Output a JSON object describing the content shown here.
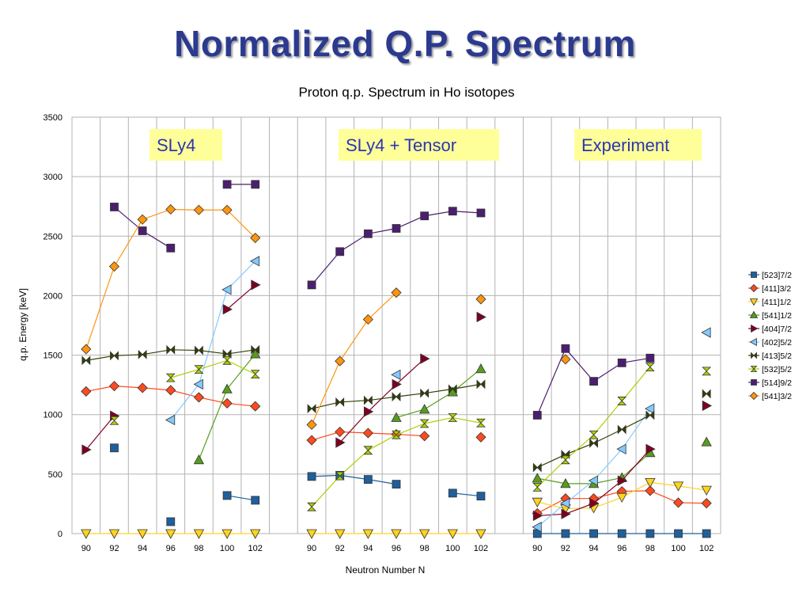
{
  "slide": {
    "title": "Normalized Q.P. Spectrum"
  },
  "chart_data": {
    "type": "line",
    "title": "Proton q.p. Spectrum in Ho isotopes",
    "xlabel": "Neutron Number N",
    "ylabel": "q.p. Energy [keV]",
    "ylim": [
      0,
      3500
    ],
    "yticks": [
      0,
      500,
      1000,
      1500,
      2000,
      2500,
      3000,
      3500
    ],
    "grid": true,
    "legend_position": "right",
    "panels": [
      {
        "label": "SLy4",
        "categories": [
          "90",
          "92",
          "94",
          "96",
          "98",
          "100",
          "102"
        ]
      },
      {
        "label": "SLy4 + Tensor",
        "categories": [
          "90",
          "92",
          "94",
          "96",
          "98",
          "100",
          "102"
        ]
      },
      {
        "label": "Experiment",
        "categories": [
          "90",
          "92",
          "94",
          "96",
          "98",
          "100",
          "102"
        ]
      }
    ],
    "series": [
      {
        "name": "[523]7/2",
        "color": "#1f5f9c",
        "marker": "square",
        "values": [
          [
            null,
            720,
            null,
            100,
            null,
            320,
            280
          ],
          [
            480,
            490,
            455,
            415,
            null,
            340,
            315
          ],
          [
            0,
            0,
            0,
            0,
            0,
            0,
            0
          ]
        ]
      },
      {
        "name": "[411]3/2",
        "color": "#ff4a1f",
        "marker": "diamond",
        "values": [
          [
            1195,
            1240,
            1225,
            1205,
            1145,
            1095,
            1070
          ],
          [
            785,
            855,
            845,
            835,
            820,
            null,
            810
          ],
          [
            170,
            295,
            295,
            355,
            360,
            260,
            255
          ]
        ]
      },
      {
        "name": "[411]1/2",
        "color": "#ffd320",
        "marker": "triangle-down",
        "values": [
          [
            0,
            0,
            0,
            0,
            0,
            0,
            0
          ],
          [
            0,
            0,
            0,
            0,
            0,
            0,
            0
          ],
          [
            265,
            210,
            215,
            305,
            430,
            400,
            365
          ]
        ]
      },
      {
        "name": "[541]1/2",
        "color": "#579d1c",
        "marker": "triangle-up",
        "values": [
          [
            null,
            null,
            null,
            null,
            620,
            1215,
            1510
          ],
          [
            null,
            null,
            null,
            975,
            1045,
            1190,
            1385
          ],
          [
            465,
            420,
            420,
            470,
            680,
            null,
            770
          ]
        ]
      },
      {
        "name": "[404]7/2",
        "color": "#7e0021",
        "marker": "triangle-right",
        "values": [
          [
            705,
            990,
            null,
            null,
            null,
            1885,
            2090
          ],
          [
            null,
            765,
            1025,
            1255,
            1470,
            null,
            1820
          ],
          [
            150,
            165,
            255,
            445,
            710,
            null,
            1075
          ]
        ]
      },
      {
        "name": "[402]5/2",
        "color": "#83caff",
        "marker": "triangle-left",
        "values": [
          [
            null,
            null,
            null,
            955,
            1255,
            2050,
            2290
          ],
          [
            null,
            null,
            null,
            1335,
            null,
            null,
            null
          ],
          [
            55,
            255,
            445,
            710,
            1050,
            null,
            1690
          ]
        ]
      },
      {
        "name": "[413]5/2",
        "color": "#314004",
        "marker": "bowtie",
        "values": [
          [
            1455,
            1495,
            1505,
            1545,
            1540,
            1510,
            1545
          ],
          [
            1050,
            1105,
            1120,
            1150,
            1180,
            1215,
            1255
          ],
          [
            555,
            665,
            760,
            875,
            995,
            null,
            1175
          ]
        ]
      },
      {
        "name": "[532]5/2",
        "color": "#aecf00",
        "marker": "hourglass",
        "values": [
          [
            null,
            950,
            null,
            1310,
            1380,
            1455,
            1340
          ],
          [
            225,
            485,
            700,
            830,
            925,
            975,
            930
          ],
          [
            390,
            620,
            830,
            1115,
            1400,
            null,
            1365
          ]
        ]
      },
      {
        "name": "[514]9/2",
        "color": "#4b1f6f",
        "marker": "square",
        "values": [
          [
            null,
            2745,
            2545,
            2400,
            null,
            2935,
            2935
          ],
          [
            2090,
            2370,
            2520,
            2565,
            2670,
            2710,
            2695
          ],
          [
            995,
            1555,
            1280,
            1435,
            1475,
            null,
            null
          ]
        ]
      },
      {
        "name": "[541]3/2",
        "color": "#ff950e",
        "marker": "diamond",
        "values": [
          [
            1550,
            2245,
            2640,
            2725,
            2720,
            2720,
            2485
          ],
          [
            915,
            1450,
            1800,
            2025,
            null,
            null,
            1970
          ],
          [
            null,
            1465,
            null,
            null,
            null,
            null,
            null
          ]
        ]
      }
    ]
  }
}
